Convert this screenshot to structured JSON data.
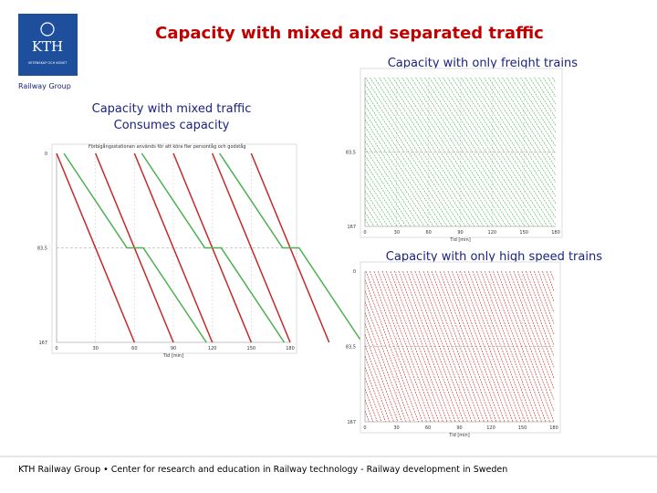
{
  "header": {
    "title": "Capacity with mixed and separated traffic",
    "logo": "KTH",
    "logo_motto": "VETENSKAP OCH KONST",
    "group": "Railway Group"
  },
  "panels": [
    {
      "caption": [
        "Capacity with mixed traffic",
        "Consumes capacity"
      ],
      "chart_title": "Förbigångsstationen används för att köra fler persontåg och godståg",
      "x_ticks": [
        "0",
        "30",
        "60",
        "90",
        "120",
        "150",
        "180"
      ],
      "y_ticks": [
        "0",
        "83,5",
        "167"
      ],
      "x_label": "Tid [min]"
    },
    {
      "caption": [
        "Capacity with only freight trains"
      ],
      "x_ticks": [
        "0",
        "30",
        "60",
        "90",
        "120",
        "150",
        "180"
      ],
      "y_ticks": [
        "83,5",
        "167"
      ],
      "x_label": "Tid [min]"
    },
    {
      "caption": [
        "Capacity with only high speed trains"
      ],
      "x_ticks": [
        "0",
        "30",
        "60",
        "90",
        "120",
        "150",
        "180"
      ],
      "y_ticks": [
        "0",
        "83,5",
        "167"
      ],
      "x_label": "Tid [min]"
    }
  ],
  "footer": "KTH Railway Group • Center for research and education in Railway technology - Railway development in Sweden"
}
